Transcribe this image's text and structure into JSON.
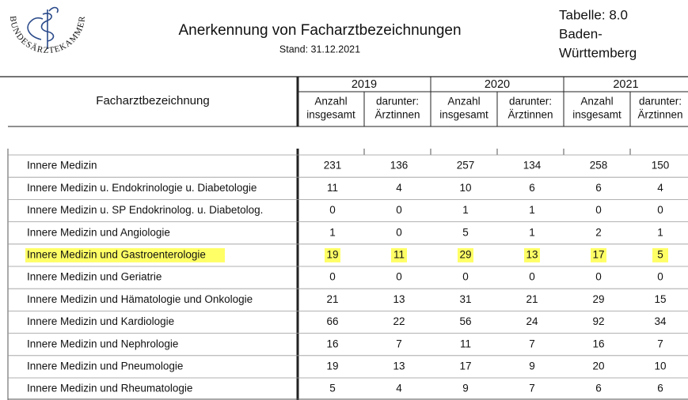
{
  "header": {
    "logo_text": "BUNDESÄRZTEKAMMER",
    "title": "Anerkennung von Facharztbezeichnungen",
    "date": "Stand: 31.12.2021",
    "table_label": [
      "Tabelle: 8.0",
      "Baden-",
      "Württemberg"
    ]
  },
  "table": {
    "column_header": "Facharztbezeichnung",
    "years": [
      "2019",
      "2020",
      "2021"
    ],
    "subheaders": [
      [
        "Anzahl",
        "insgesamt"
      ],
      [
        "darunter:",
        "Ärztinnen"
      ]
    ],
    "rows": [
      {
        "label": "Innere Medizin",
        "values": [
          "231",
          "136",
          "257",
          "134",
          "258",
          "150"
        ]
      },
      {
        "label": "Innere Medizin u. Endokrinologie u. Diabetologie",
        "values": [
          "11",
          "4",
          "10",
          "6",
          "6",
          "4"
        ]
      },
      {
        "label": "Innere Medizin u. SP Endokrinolog. u. Diabetolog.",
        "values": [
          "0",
          "0",
          "1",
          "1",
          "0",
          "0"
        ]
      },
      {
        "label": "Innere Medizin und Angiologie",
        "values": [
          "1",
          "0",
          "5",
          "1",
          "2",
          "1"
        ]
      },
      {
        "label": "Innere Medizin und Gastroenterologie",
        "values": [
          "19",
          "11",
          "29",
          "13",
          "17",
          "5"
        ],
        "highlighted": true
      },
      {
        "label": "Innere Medizin und Geriatrie",
        "values": [
          "0",
          "0",
          "0",
          "0",
          "0",
          "0"
        ]
      },
      {
        "label": "Innere Medizin und Hämatologie und Onkologie",
        "values": [
          "21",
          "13",
          "31",
          "21",
          "29",
          "15"
        ]
      },
      {
        "label": "Innere Medizin und Kardiologie",
        "values": [
          "66",
          "22",
          "56",
          "24",
          "92",
          "34"
        ]
      },
      {
        "label": "Innere Medizin und Nephrologie",
        "values": [
          "16",
          "7",
          "11",
          "7",
          "16",
          "7"
        ]
      },
      {
        "label": "Innere Medizin und Pneumologie",
        "values": [
          "19",
          "13",
          "17",
          "9",
          "20",
          "10"
        ]
      },
      {
        "label": "Innere Medizin und Rheumatologie",
        "values": [
          "5",
          "4",
          "9",
          "7",
          "6",
          "6"
        ]
      }
    ]
  }
}
